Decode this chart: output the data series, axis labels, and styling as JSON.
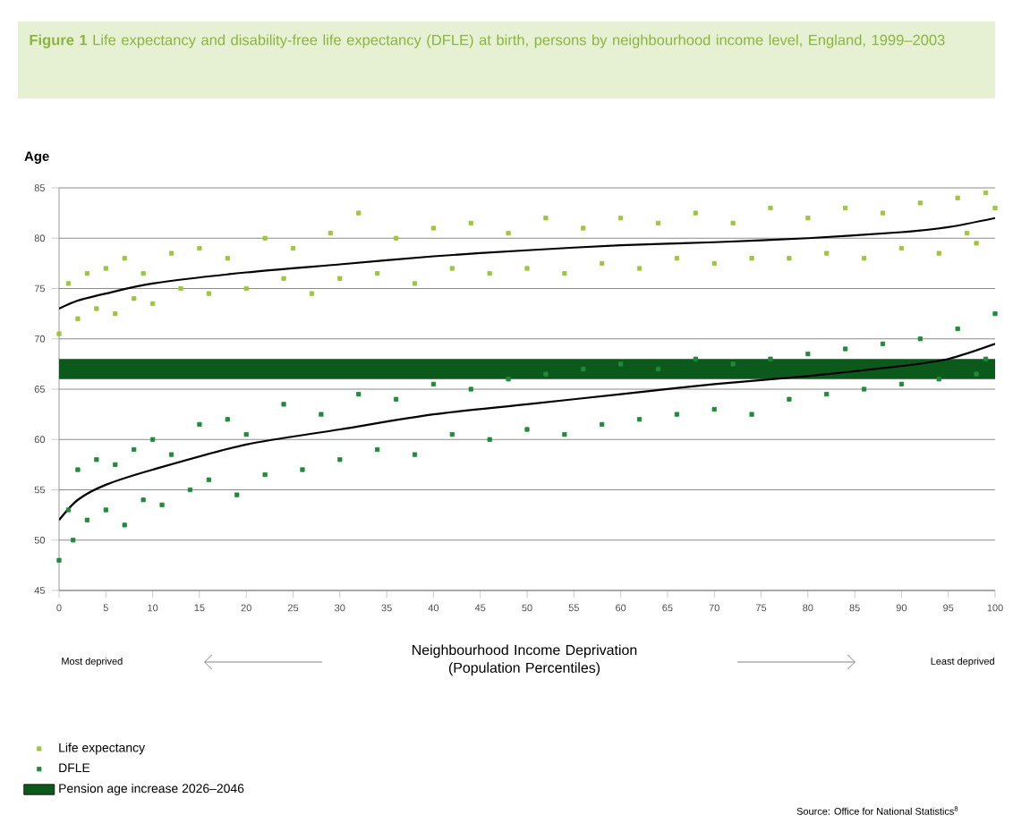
{
  "chart_data": {
    "type": "scatter",
    "title": "**Figure 1** Life expectancy and disability-free life expectancy (DFLE) at birth, persons by neighbourhood income level, England, 1999–2003",
    "ylabel": "Age",
    "xlabel": "Neighbourhood Income Deprivation (Population Percentiles)",
    "annotations": [
      "Most deprived",
      "Least deprived",
      "Source: Office for National Statistics$^{8}$"
    ],
    "xlim": [
      0,
      100
    ],
    "xticks": [
      0,
      5,
      10,
      15,
      20,
      25,
      30,
      35,
      40,
      45,
      50,
      55,
      60,
      65,
      70,
      75,
      80,
      85,
      90,
      95,
      100
    ],
    "ylim": [
      45,
      85
    ],
    "yticks": [
      45,
      50,
      55,
      60,
      65,
      70,
      75,
      80,
      85
    ],
    "grid": "y",
    "legend": "bottom left",
    "bands": [
      {
        "axis": "y",
        "from": 66,
        "to": 68,
        "label": "Pension age increase 2026–2046",
        "color": "#0b5a1c"
      }
    ],
    "series": [
      {
        "name": "Life expectancy",
        "color": "#9cc63b",
        "marker": "square",
        "x": [
          0,
          1,
          2,
          3,
          4,
          5,
          6,
          7,
          8,
          9,
          10,
          12,
          13,
          15,
          16,
          18,
          20,
          22,
          24,
          25,
          27,
          29,
          30,
          32,
          34,
          36,
          38,
          40,
          42,
          44,
          46,
          48,
          50,
          52,
          54,
          56,
          58,
          60,
          62,
          64,
          66,
          68,
          70,
          72,
          74,
          76,
          78,
          80,
          82,
          84,
          86,
          88,
          90,
          92,
          94,
          96,
          98,
          100,
          99,
          97
        ],
        "values": [
          70.5,
          75.5,
          72,
          76.5,
          73,
          77,
          72.5,
          78,
          74,
          76.5,
          73.5,
          78.5,
          75,
          79,
          74.5,
          78,
          75,
          80,
          76,
          79,
          74.5,
          80.5,
          76,
          82.5,
          76.5,
          80,
          75.5,
          81,
          77,
          81.5,
          76.5,
          80.5,
          77,
          82,
          76.5,
          81,
          77.5,
          82,
          77,
          81.5,
          78,
          82.5,
          77.5,
          81.5,
          78,
          83,
          78,
          82,
          78.5,
          83,
          78,
          82.5,
          79,
          83.5,
          78.5,
          84,
          79.5,
          83,
          84.5,
          80.5
        ]
      },
      {
        "name": "DFLE",
        "color": "#1f8a3a",
        "marker": "square",
        "x": [
          0,
          1,
          1.5,
          2,
          3,
          4,
          5,
          6,
          7,
          8,
          9,
          10,
          11,
          12,
          14,
          15,
          16,
          18,
          19,
          20,
          22,
          24,
          26,
          28,
          30,
          32,
          34,
          36,
          38,
          40,
          42,
          44,
          46,
          48,
          50,
          52,
          54,
          56,
          58,
          60,
          62,
          64,
          66,
          68,
          70,
          72,
          74,
          76,
          78,
          80,
          82,
          84,
          86,
          88,
          90,
          92,
          94,
          96,
          98,
          100,
          99
        ],
        "values": [
          48,
          53,
          50,
          57,
          52,
          58,
          53,
          57.5,
          51.5,
          59,
          54,
          60,
          53.5,
          58.5,
          55,
          61.5,
          56,
          62,
          54.5,
          60.5,
          56.5,
          63.5,
          57,
          62.5,
          58,
          64.5,
          59,
          64,
          58.5,
          65.5,
          60.5,
          65,
          60,
          66,
          61,
          66.5,
          60.5,
          67,
          61.5,
          67.5,
          62,
          67,
          62.5,
          68,
          63,
          67.5,
          62.5,
          68,
          64,
          68.5,
          64.5,
          69,
          65,
          69.5,
          65.5,
          70,
          66,
          71,
          66.5,
          72.5,
          68
        ]
      },
      {
        "color": "#000000",
        "type": "line",
        "marker": "none",
        "x": [
          0,
          2,
          5,
          10,
          20,
          30,
          40,
          50,
          60,
          70,
          80,
          90,
          95,
          100
        ],
        "values": [
          73,
          73.8,
          74.5,
          75.5,
          76.6,
          77.4,
          78.2,
          78.8,
          79.3,
          79.6,
          80,
          80.6,
          81.1,
          82
        ]
      },
      {
        "color": "#000000",
        "type": "line",
        "marker": "none",
        "x": [
          0,
          2,
          5,
          10,
          20,
          30,
          40,
          50,
          60,
          70,
          80,
          90,
          95,
          100
        ],
        "values": [
          52,
          54,
          55.5,
          57,
          59.5,
          61,
          62.5,
          63.5,
          64.5,
          65.5,
          66.3,
          67.3,
          68,
          69.5
        ]
      }
    ]
  }
}
